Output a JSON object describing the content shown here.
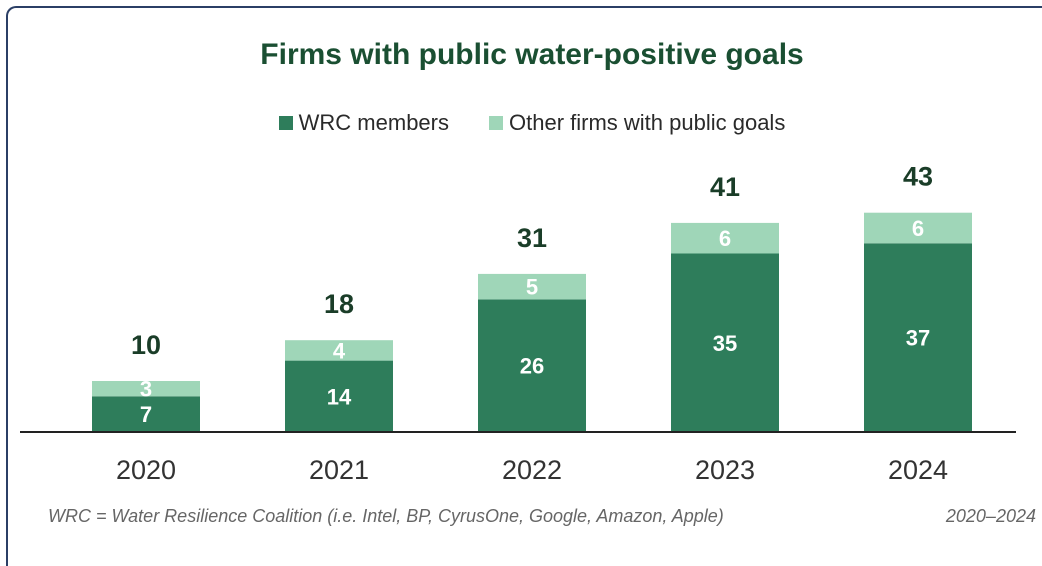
{
  "chart_data": {
    "type": "bar",
    "stacked": true,
    "title": "Firms with public water-positive goals",
    "categories": [
      "2020",
      "2021",
      "2022",
      "2023",
      "2024"
    ],
    "series": [
      {
        "name": "WRC members",
        "values": [
          7,
          14,
          26,
          35,
          37
        ],
        "color": "#2e7d5b"
      },
      {
        "name": "Other firms with public goals",
        "values": [
          3,
          4,
          5,
          6,
          6
        ],
        "color": "#9fd6b8"
      }
    ],
    "totals": [
      10,
      18,
      31,
      41,
      43
    ],
    "ylim": [
      0,
      43
    ],
    "grid": false,
    "legend": "top",
    "label_color_dark": "#1a3d28"
  },
  "footnote": "WRC = Water Resilience Coalition (i.e. Intel, BP, CyrusOne, Google, Amazon, Apple)",
  "period": "2020–2024"
}
